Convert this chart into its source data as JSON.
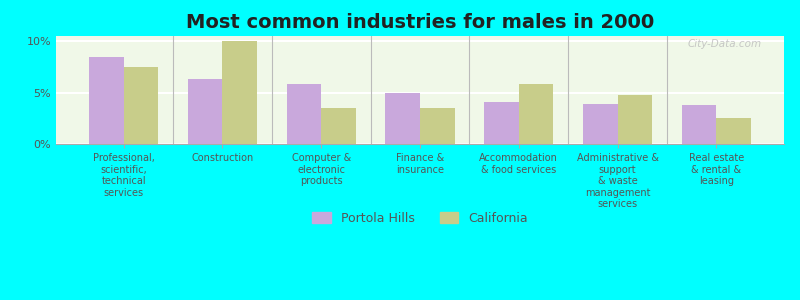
{
  "title": "Most common industries for males in 2000",
  "categories": [
    "Professional,\nscientific,\ntechnical\nservices",
    "Construction",
    "Computer &\nelectronic\nproducts",
    "Finance &\ninsurance",
    "Accommodation\n& food services",
    "Administrative &\nsupport\n& waste\nmanagement\nservices",
    "Real estate\n& rental &\nleasing"
  ],
  "portola_hills": [
    8.5,
    6.3,
    5.8,
    5.0,
    4.1,
    3.9,
    3.8
  ],
  "california": [
    7.5,
    10.0,
    3.5,
    3.5,
    5.8,
    4.8,
    2.5
  ],
  "portola_color": "#c9a8dc",
  "california_color": "#c8cd8a",
  "background_color": "#00ffff",
  "plot_bg": "#f0f8e8",
  "ylim": [
    0,
    10.5
  ],
  "yticks": [
    0,
    5,
    10
  ],
  "ytick_labels": [
    "0%",
    "5%",
    "10%"
  ],
  "bar_width": 0.35,
  "legend_portola": "Portola Hills",
  "legend_california": "California",
  "title_fontsize": 14,
  "label_fontsize": 7,
  "tick_fontsize": 8,
  "legend_fontsize": 9
}
